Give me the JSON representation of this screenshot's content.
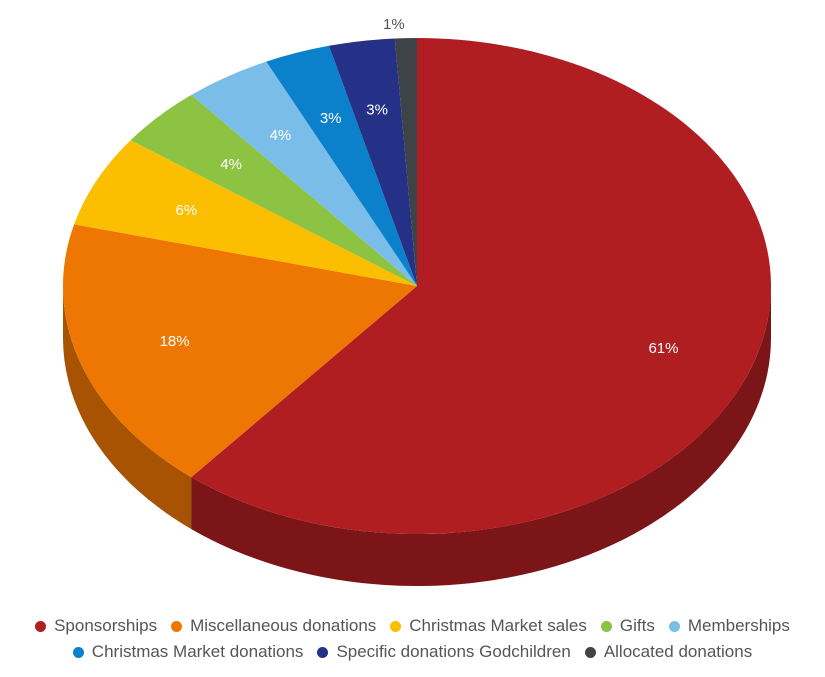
{
  "chart_data": {
    "type": "pie",
    "style": "3d-tilted",
    "label_format": "percent",
    "slices": [
      {
        "label": "Sponsorships",
        "value": 61,
        "display": "61%",
        "color": "#b01e22"
      },
      {
        "label": "Miscellaneous donations",
        "value": 18,
        "display": "18%",
        "color": "#ee7703"
      },
      {
        "label": "Christmas Market sales",
        "value": 6,
        "display": "6%",
        "color": "#fbbe00"
      },
      {
        "label": "Gifts",
        "value": 4,
        "display": "4%",
        "color": "#8dc342"
      },
      {
        "label": "Memberships",
        "value": 4,
        "display": "4%",
        "color": "#7bbde9"
      },
      {
        "label": "Christmas Market donations",
        "value": 3,
        "display": "3%",
        "color": "#0b81cc"
      },
      {
        "label": "Specific donations Godchildren",
        "value": 3,
        "display": "3%",
        "color": "#243186"
      },
      {
        "label": "Allocated donations",
        "value": 1,
        "display": "1%",
        "color": "#3e4347"
      }
    ],
    "legend_position": "bottom"
  }
}
